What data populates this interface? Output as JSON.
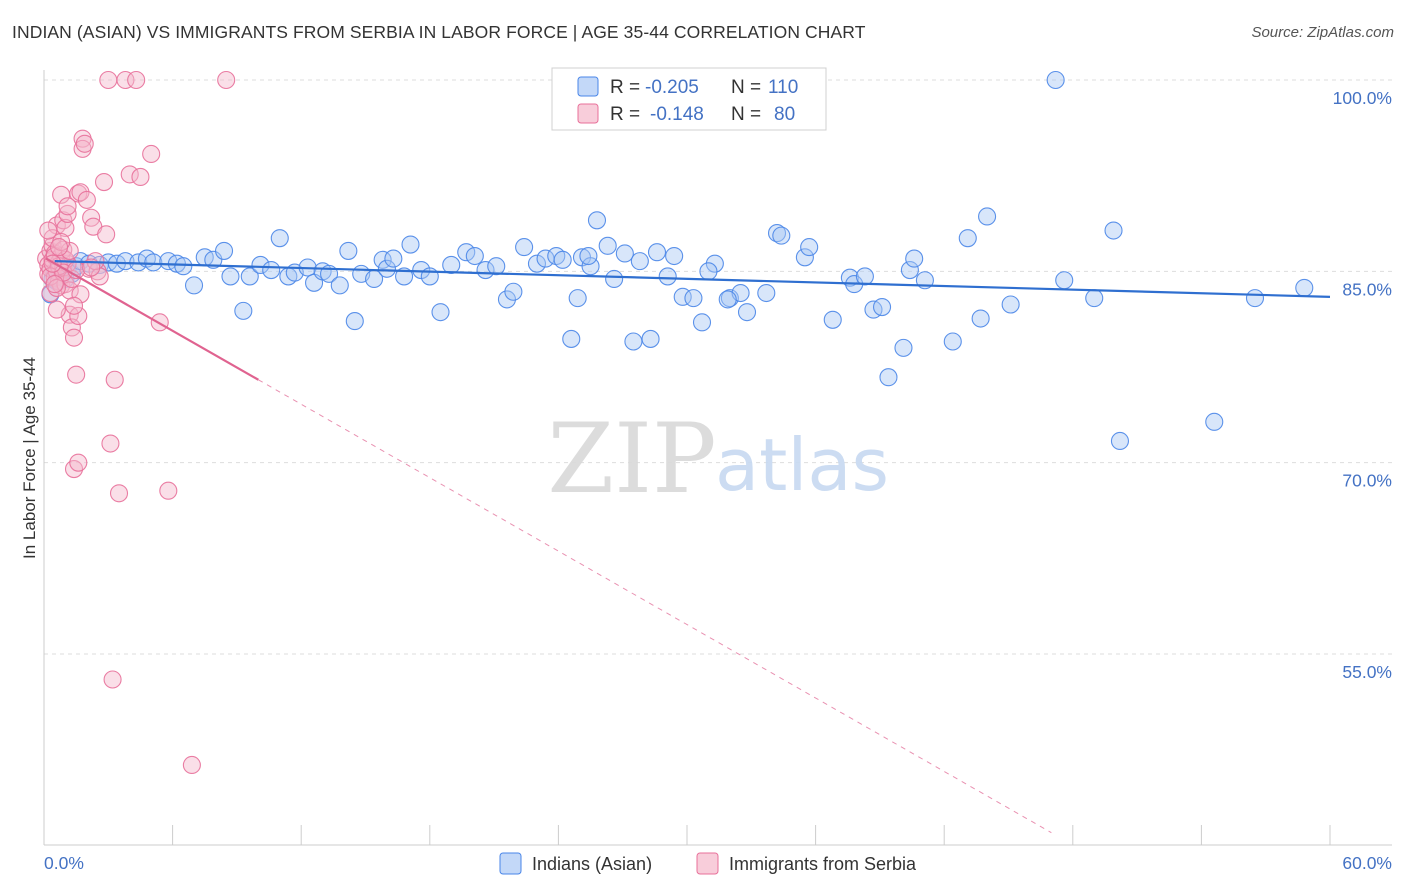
{
  "title": "INDIAN (ASIAN) VS IMMIGRANTS FROM SERBIA IN LABOR FORCE | AGE 35-44 CORRELATION CHART",
  "source": "Source: ZipAtlas.com",
  "watermark": {
    "zip": "ZIP",
    "atlas": "atlas"
  },
  "colors": {
    "blue": "#4a86e8",
    "blue_fill": "#a9c8f5",
    "blue_line": "#2f6fd0",
    "pink": "#e8709a",
    "pink_fill": "#f5b8cb",
    "pink_line": "#e06390",
    "axis_text": "#4472c4",
    "grid": "#dddddd"
  },
  "legend": {
    "r_label": "R =",
    "n_label": "N =",
    "rows": [
      {
        "series": "blue",
        "r": "-0.205",
        "n": "110"
      },
      {
        "series": "pink",
        "r": "-0.148",
        "n": "80"
      }
    ]
  },
  "chart_data": {
    "type": "scatter",
    "title": "INDIAN (ASIAN) VS IMMIGRANTS FROM SERBIA IN LABOR FORCE | AGE 35-44 CORRELATION CHART",
    "xlabel": "",
    "ylabel": "In Labor Force | Age 35-44",
    "xlim": [
      0,
      60
    ],
    "ylim": [
      40,
      101
    ],
    "x_tick_labels": [
      "0.0%",
      "60.0%"
    ],
    "y_tick_values": [
      55,
      70,
      85,
      100
    ],
    "y_tick_labels": [
      "55.0%",
      "70.0%",
      "85.0%",
      "100.0%"
    ],
    "legend_position": "top-center",
    "series": [
      {
        "name": "Indians (Asian)",
        "color": "blue",
        "r": -0.205,
        "n": 110,
        "trend": {
          "x": [
            0.5,
            60
          ],
          "y": [
            85.8,
            83.0
          ],
          "dashed_x": []
        },
        "points": [
          [
            0.3,
            83.2
          ],
          [
            0.4,
            84.4
          ],
          [
            0.5,
            85.0
          ],
          [
            0.6,
            84.6
          ],
          [
            0.6,
            84.2
          ],
          [
            0.7,
            85.1
          ],
          [
            0.8,
            84.8
          ],
          [
            0.8,
            85.5
          ],
          [
            1.0,
            84.4
          ],
          [
            1.1,
            85.2
          ],
          [
            1.3,
            84.8
          ],
          [
            1.5,
            85.4
          ],
          [
            1.7,
            85.8
          ],
          [
            2.1,
            85.6
          ],
          [
            2.6,
            85.5
          ],
          [
            3.0,
            85.7
          ],
          [
            3.4,
            85.6
          ],
          [
            3.8,
            85.8
          ],
          [
            4.4,
            85.7
          ],
          [
            4.8,
            86.0
          ],
          [
            5.1,
            85.7
          ],
          [
            5.8,
            85.8
          ],
          [
            6.2,
            85.6
          ],
          [
            6.5,
            85.4
          ],
          [
            7.0,
            83.9
          ],
          [
            7.5,
            86.1
          ],
          [
            7.9,
            85.9
          ],
          [
            8.4,
            86.6
          ],
          [
            8.7,
            84.6
          ],
          [
            9.3,
            81.9
          ],
          [
            9.6,
            84.6
          ],
          [
            10.1,
            85.5
          ],
          [
            10.6,
            85.1
          ],
          [
            11.0,
            87.6
          ],
          [
            11.4,
            84.6
          ],
          [
            11.7,
            84.9
          ],
          [
            12.3,
            85.3
          ],
          [
            12.6,
            84.1
          ],
          [
            13.0,
            85.0
          ],
          [
            13.3,
            84.8
          ],
          [
            13.8,
            83.9
          ],
          [
            14.2,
            86.6
          ],
          [
            14.5,
            81.1
          ],
          [
            14.8,
            84.8
          ],
          [
            15.4,
            84.4
          ],
          [
            15.8,
            85.9
          ],
          [
            16.0,
            85.2
          ],
          [
            16.3,
            86.0
          ],
          [
            16.8,
            84.6
          ],
          [
            17.1,
            87.1
          ],
          [
            17.6,
            85.1
          ],
          [
            18.0,
            84.6
          ],
          [
            18.5,
            81.8
          ],
          [
            19.0,
            85.5
          ],
          [
            19.7,
            86.5
          ],
          [
            20.1,
            86.2
          ],
          [
            20.6,
            85.1
          ],
          [
            21.1,
            85.4
          ],
          [
            21.6,
            82.8
          ],
          [
            21.9,
            83.4
          ],
          [
            22.4,
            86.9
          ],
          [
            23.0,
            85.6
          ],
          [
            23.4,
            86.0
          ],
          [
            23.9,
            86.2
          ],
          [
            24.2,
            85.9
          ],
          [
            24.6,
            79.7
          ],
          [
            25.1,
            86.1
          ],
          [
            25.5,
            85.4
          ],
          [
            26.3,
            87.0
          ],
          [
            26.6,
            84.4
          ],
          [
            27.1,
            86.4
          ],
          [
            27.5,
            79.5
          ],
          [
            27.8,
            85.8
          ],
          [
            28.3,
            79.7
          ],
          [
            28.6,
            86.5
          ],
          [
            29.1,
            84.6
          ],
          [
            29.4,
            86.2
          ],
          [
            29.8,
            83.0
          ],
          [
            30.3,
            82.9
          ],
          [
            30.7,
            81.0
          ],
          [
            31.3,
            85.6
          ],
          [
            32.0,
            82.9
          ],
          [
            32.5,
            83.3
          ],
          [
            32.8,
            81.8
          ],
          [
            34.2,
            88.0
          ],
          [
            34.4,
            87.8
          ],
          [
            35.5,
            86.1
          ],
          [
            35.7,
            86.9
          ],
          [
            36.8,
            81.2
          ],
          [
            37.6,
            84.5
          ],
          [
            37.8,
            84.0
          ],
          [
            38.3,
            84.6
          ],
          [
            38.7,
            82.0
          ],
          [
            39.1,
            82.2
          ],
          [
            39.4,
            76.7
          ],
          [
            40.1,
            79.0
          ],
          [
            40.4,
            85.1
          ],
          [
            40.6,
            86.0
          ],
          [
            41.1,
            84.3
          ],
          [
            42.4,
            79.5
          ],
          [
            43.1,
            87.6
          ],
          [
            43.7,
            81.3
          ],
          [
            44.0,
            89.3
          ],
          [
            45.1,
            82.4
          ],
          [
            47.2,
            100.0
          ],
          [
            47.6,
            84.3
          ],
          [
            49.0,
            82.9
          ],
          [
            49.9,
            88.2
          ],
          [
            50.2,
            71.7
          ],
          [
            54.6,
            73.2
          ],
          [
            56.5,
            82.9
          ],
          [
            58.8,
            83.7
          ],
          [
            33.7,
            83.3
          ],
          [
            31.9,
            82.8
          ],
          [
            25.4,
            86.2
          ],
          [
            24.9,
            82.9
          ],
          [
            31.0,
            85.0
          ],
          [
            25.8,
            89.0
          ]
        ]
      },
      {
        "name": "Immigrants from Serbia",
        "color": "pink",
        "r": -0.148,
        "n": 80,
        "trend": {
          "x": [
            0.1,
            10.0
          ],
          "y": [
            86.0,
            76.5
          ],
          "dashed_x": [
            10.0,
            47.0
          ]
        },
        "points": [
          [
            0.1,
            86.0
          ],
          [
            0.2,
            85.5
          ],
          [
            0.2,
            84.8
          ],
          [
            0.3,
            85.2
          ],
          [
            0.3,
            86.6
          ],
          [
            0.3,
            83.3
          ],
          [
            0.4,
            87.0
          ],
          [
            0.4,
            85.9
          ],
          [
            0.5,
            84.5
          ],
          [
            0.5,
            86.4
          ],
          [
            0.6,
            85.0
          ],
          [
            0.6,
            88.6
          ],
          [
            0.7,
            84.2
          ],
          [
            0.7,
            85.7
          ],
          [
            0.8,
            83.9
          ],
          [
            0.8,
            86.2
          ],
          [
            0.9,
            85.3
          ],
          [
            0.9,
            89.0
          ],
          [
            1.0,
            84.0
          ],
          [
            1.0,
            88.4
          ],
          [
            1.1,
            85.6
          ],
          [
            1.2,
            83.5
          ],
          [
            1.2,
            81.6
          ],
          [
            1.3,
            80.6
          ],
          [
            1.4,
            79.8
          ],
          [
            1.5,
            76.9
          ],
          [
            1.6,
            81.5
          ],
          [
            1.6,
            91.1
          ],
          [
            1.7,
            91.2
          ],
          [
            1.8,
            95.4
          ],
          [
            1.8,
            94.6
          ],
          [
            2.0,
            90.6
          ],
          [
            2.1,
            85.2
          ],
          [
            2.2,
            89.2
          ],
          [
            2.3,
            88.5
          ],
          [
            2.5,
            85.0
          ],
          [
            2.6,
            84.6
          ],
          [
            2.9,
            87.9
          ],
          [
            3.0,
            100.0
          ],
          [
            3.1,
            71.5
          ],
          [
            3.2,
            53.0
          ],
          [
            3.3,
            76.5
          ],
          [
            3.5,
            67.6
          ],
          [
            3.8,
            100.0
          ],
          [
            4.0,
            92.6
          ],
          [
            4.3,
            100.0
          ],
          [
            4.5,
            92.4
          ],
          [
            5.0,
            94.2
          ],
          [
            5.4,
            81.0
          ],
          [
            5.8,
            67.8
          ],
          [
            6.9,
            46.3
          ],
          [
            8.5,
            100.0
          ],
          [
            1.4,
            69.5
          ],
          [
            1.6,
            70.0
          ],
          [
            0.8,
            91.0
          ],
          [
            1.1,
            89.5
          ],
          [
            0.6,
            82.0
          ],
          [
            2.8,
            92.0
          ],
          [
            0.4,
            87.6
          ],
          [
            0.9,
            86.7
          ],
          [
            1.3,
            84.4
          ],
          [
            0.2,
            88.2
          ],
          [
            0.5,
            86.2
          ],
          [
            0.7,
            85.4
          ],
          [
            1.0,
            85.9
          ],
          [
            1.9,
            95.0
          ],
          [
            2.4,
            85.8
          ],
          [
            0.3,
            84.6
          ],
          [
            0.6,
            83.7
          ],
          [
            1.2,
            86.6
          ],
          [
            0.9,
            84.9
          ],
          [
            0.4,
            85.6
          ],
          [
            1.5,
            85.1
          ],
          [
            0.8,
            87.3
          ],
          [
            1.7,
            83.2
          ],
          [
            2.2,
            85.3
          ],
          [
            1.1,
            90.1
          ],
          [
            0.5,
            84.0
          ],
          [
            0.7,
            86.9
          ],
          [
            1.4,
            82.3
          ]
        ]
      }
    ]
  },
  "bottom_legend": [
    {
      "series": "blue",
      "label": "Indians (Asian)"
    },
    {
      "series": "pink",
      "label": "Immigrants from Serbia"
    }
  ]
}
